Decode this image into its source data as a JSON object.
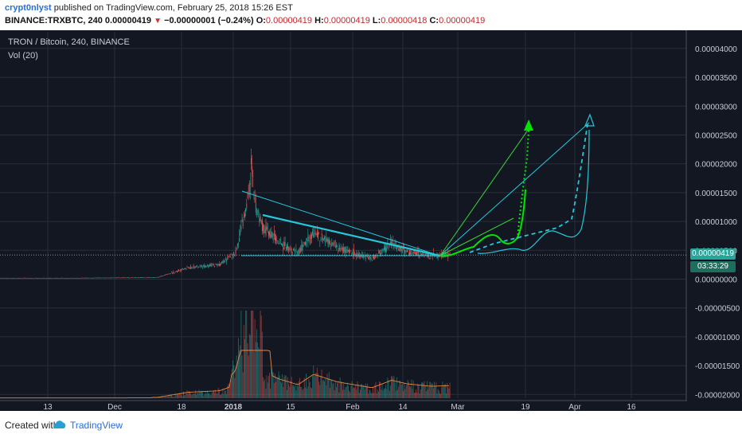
{
  "publish": {
    "author": "crypt0nlyst",
    "text": "published on TradingView.com, February 25, 2018 15:26 EST"
  },
  "ohlc": {
    "symbol": "BINANCE:TRXBTC, 240",
    "last": "0.00000419",
    "change": "−0.00000001 (−0.24%)",
    "o_label": "O:",
    "o": "0.00000419",
    "h_label": "H:",
    "h": "0.00000419",
    "l_label": "L:",
    "l": "0.00000418",
    "c_label": "C:",
    "c": "0.00000419"
  },
  "legend": {
    "title": "TRON / Bitcoin, 240, BINANCE",
    "volume": "Vol (20)"
  },
  "price_badge": {
    "price": "0.00000419",
    "countdown": "03:33:29"
  },
  "footer": {
    "created": "Created with",
    "brand": "TradingView"
  },
  "colors": {
    "background": "#131722",
    "grid": "#2a2e39",
    "up": "#26a69a",
    "down": "#ef5350",
    "green_arrow": "#00e600",
    "cyan_line": "#25c7d9",
    "badge": "#1d6e5c",
    "text": "#c9ccd4"
  },
  "chart_data": {
    "type": "candlestick",
    "title": "TRON / Bitcoin, 240, BINANCE",
    "x_ticks": [
      "13",
      "Dec",
      "18",
      "2018",
      "15",
      "Feb",
      "14",
      "Mar",
      "19",
      "Apr",
      "16"
    ],
    "y_ticks": [
      "0.00004000",
      "0.00003500",
      "0.00003000",
      "0.00002500",
      "0.00002000",
      "0.00001500",
      "0.00001000",
      "0.00000500",
      "0.00000000",
      "-0.00000500",
      "-0.00001000",
      "-0.00001500",
      "-0.00002000"
    ],
    "y_range": [
      -2e-05,
      4e-05
    ],
    "last_price": 4.19e-06,
    "price_path": [
      [
        "2017-11-01",
        2e-07
      ],
      [
        "2017-11-20",
        2e-07
      ],
      [
        "2017-12-01",
        2.5e-07
      ],
      [
        "2017-12-12",
        3e-07
      ],
      [
        "2017-12-20",
        2e-06
      ],
      [
        "2017-12-28",
        2.5e-06
      ],
      [
        "2018-01-01",
        4.5e-06
      ],
      [
        "2018-01-04",
        1.3e-05
      ],
      [
        "2018-01-05",
        2e-05
      ],
      [
        "2018-01-06",
        1.3e-05
      ],
      [
        "2018-01-08",
        9e-06
      ],
      [
        "2018-01-12",
        6.5e-06
      ],
      [
        "2018-01-17",
        4.5e-06
      ],
      [
        "2018-01-21",
        8e-06
      ],
      [
        "2018-01-27",
        5.5e-06
      ],
      [
        "2018-02-05",
        3.5e-06
      ],
      [
        "2018-02-10",
        6e-06
      ],
      [
        "2018-02-14",
        4.8e-06
      ],
      [
        "2018-02-20",
        4e-06
      ],
      [
        "2018-02-25",
        4.19e-06
      ]
    ],
    "volume_label": "Vol (20)",
    "annotations": [
      "descending triangle trendlines",
      "green projection arrows",
      "cyan projection lines"
    ]
  }
}
